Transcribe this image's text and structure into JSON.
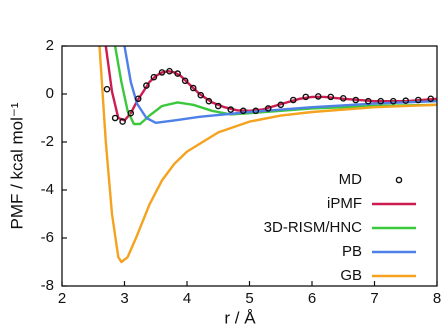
{
  "chart_data": {
    "type": "line",
    "xlabel": "r / Å",
    "ylabel": "PMF / kcal mol⁻¹",
    "xlim": [
      2,
      8
    ],
    "ylim": [
      -8,
      2
    ],
    "xticks": [
      2,
      3,
      4,
      5,
      6,
      7,
      8
    ],
    "yticks": [
      -8,
      -6,
      -4,
      -2,
      0,
      2
    ],
    "legend": "lower right",
    "series": [
      {
        "name": "MD",
        "style": "points",
        "color": "#111111",
        "x": [
          2.72,
          2.85,
          2.97,
          3.1,
          3.22,
          3.35,
          3.47,
          3.6,
          3.72,
          3.85,
          3.97,
          4.1,
          4.22,
          4.35,
          4.5,
          4.7,
          4.9,
          5.1,
          5.3,
          5.5,
          5.7,
          5.9,
          6.1,
          6.3,
          6.5,
          6.7,
          6.9,
          7.1,
          7.3,
          7.5,
          7.7,
          7.9
        ],
        "values": [
          0.2,
          -1.0,
          -1.15,
          -0.8,
          -0.2,
          0.35,
          0.7,
          0.9,
          0.95,
          0.85,
          0.55,
          0.25,
          -0.05,
          -0.3,
          -0.5,
          -0.65,
          -0.7,
          -0.7,
          -0.6,
          -0.45,
          -0.25,
          -0.12,
          -0.1,
          -0.12,
          -0.18,
          -0.25,
          -0.3,
          -0.3,
          -0.3,
          -0.28,
          -0.25,
          -0.2
        ]
      },
      {
        "name": "iPMF",
        "style": "line",
        "color": "#cf1c50",
        "x": [
          2.7,
          2.8,
          2.9,
          3.0,
          3.1,
          3.2,
          3.3,
          3.4,
          3.5,
          3.6,
          3.7,
          3.8,
          3.9,
          4.0,
          4.2,
          4.4,
          4.6,
          4.8,
          5.0,
          5.2,
          5.4,
          5.6,
          5.8,
          6.0,
          6.2,
          6.5,
          7.0,
          7.5,
          8.0
        ],
        "values": [
          2,
          0.1,
          -1.0,
          -1.1,
          -0.8,
          -0.3,
          0.1,
          0.5,
          0.75,
          0.9,
          0.95,
          0.9,
          0.75,
          0.5,
          0.0,
          -0.35,
          -0.55,
          -0.68,
          -0.7,
          -0.65,
          -0.5,
          -0.35,
          -0.2,
          -0.12,
          -0.12,
          -0.2,
          -0.3,
          -0.3,
          -0.2
        ]
      },
      {
        "name": "3D-RISM/HNC",
        "style": "line",
        "color": "#3cc83c",
        "x": [
          2.85,
          2.95,
          3.05,
          3.15,
          3.25,
          3.4,
          3.6,
          3.85,
          4.1,
          4.4,
          4.7,
          5.0,
          5.5,
          6.0,
          7.0,
          8.0
        ],
        "values": [
          2,
          0.5,
          -0.7,
          -1.25,
          -1.25,
          -0.9,
          -0.5,
          -0.35,
          -0.45,
          -0.7,
          -0.85,
          -0.8,
          -0.7,
          -0.6,
          -0.5,
          -0.45
        ]
      },
      {
        "name": "PB",
        "style": "line",
        "color": "#4f80e8",
        "x": [
          3.0,
          3.1,
          3.2,
          3.35,
          3.5,
          3.8,
          4.2,
          5.0,
          6.0,
          7.0,
          8.0
        ],
        "values": [
          2,
          0.5,
          -0.4,
          -1.0,
          -1.2,
          -1.1,
          -0.95,
          -0.75,
          -0.55,
          -0.4,
          -0.3
        ]
      },
      {
        "name": "GB",
        "style": "line",
        "color": "#f5a21e",
        "x": [
          2.6,
          2.7,
          2.8,
          2.9,
          2.95,
          3.05,
          3.2,
          3.4,
          3.6,
          3.8,
          4.0,
          4.5,
          5.0,
          5.5,
          6.0,
          7.0,
          8.0
        ],
        "values": [
          2,
          -2.0,
          -5.0,
          -6.8,
          -7.0,
          -6.8,
          -5.9,
          -4.6,
          -3.6,
          -2.9,
          -2.4,
          -1.6,
          -1.15,
          -0.9,
          -0.75,
          -0.55,
          -0.45
        ]
      }
    ]
  }
}
